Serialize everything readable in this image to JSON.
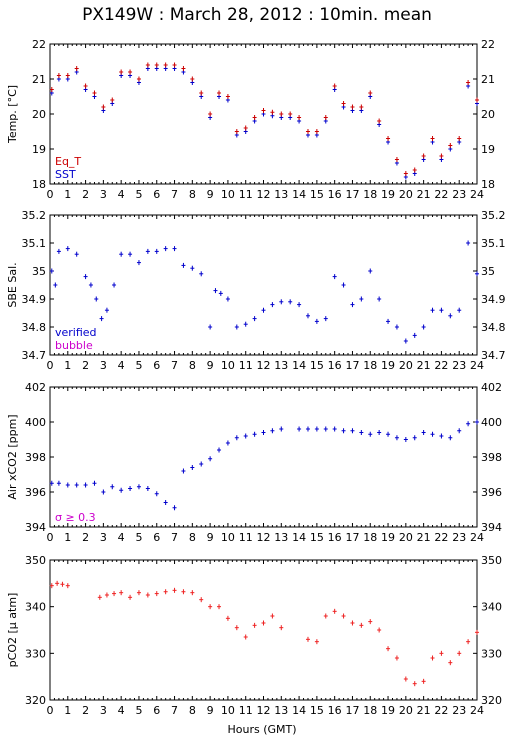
{
  "title": "PX149W : March 28, 2012 : 10min. mean",
  "xlabel": "Hours (GMT)",
  "chart_data": [
    {
      "type": "scatter",
      "ylabel": "Temp. [°C]",
      "ylim": [
        18,
        22
      ],
      "yticks": [
        18,
        19,
        20,
        21,
        22
      ],
      "xlim": [
        0,
        24
      ],
      "legend": [
        "Eq_T",
        "SST"
      ],
      "legend_colors": [
        "#cc0000",
        "#0000cc"
      ],
      "series": [
        {
          "name": "SST",
          "color": "#0000cc",
          "x": [
            0.1,
            0.5,
            1.0,
            1.5,
            2.0,
            2.5,
            3.0,
            3.5,
            4.0,
            4.5,
            5.0,
            5.5,
            6.0,
            6.5,
            7.0,
            7.5,
            8.0,
            8.5,
            9.0,
            9.5,
            10.0,
            10.5,
            11.0,
            11.5,
            12.0,
            12.5,
            13.0,
            13.5,
            14.0,
            14.5,
            15.0,
            15.5,
            16.0,
            16.5,
            17.0,
            17.5,
            18.0,
            18.5,
            19.0,
            19.5,
            20.0,
            20.5,
            21.0,
            21.5,
            22.0,
            22.5,
            23.0,
            23.5,
            24.0
          ],
          "y": [
            20.6,
            21.0,
            21.0,
            21.2,
            20.7,
            20.5,
            20.1,
            20.3,
            21.1,
            21.1,
            20.9,
            21.3,
            21.3,
            21.3,
            21.3,
            21.2,
            20.9,
            20.5,
            19.9,
            20.5,
            20.4,
            19.4,
            19.5,
            19.8,
            20.0,
            19.95,
            19.9,
            19.9,
            19.8,
            19.4,
            19.4,
            19.8,
            20.7,
            20.2,
            20.1,
            20.1,
            20.5,
            19.7,
            19.2,
            18.6,
            18.2,
            18.3,
            18.7,
            19.2,
            18.7,
            19.0,
            19.2,
            20.8,
            20.3
          ]
        },
        {
          "name": "Eq_T",
          "color": "#cc0000",
          "x": [
            0.1,
            0.5,
            1.0,
            1.5,
            2.0,
            2.5,
            3.0,
            3.5,
            4.0,
            4.5,
            5.0,
            5.5,
            6.0,
            6.5,
            7.0,
            7.5,
            8.0,
            8.5,
            9.0,
            9.5,
            10.0,
            10.5,
            11.0,
            11.5,
            12.0,
            12.5,
            13.0,
            13.5,
            14.0,
            14.5,
            15.0,
            15.5,
            16.0,
            16.5,
            17.0,
            17.5,
            18.0,
            18.5,
            19.0,
            19.5,
            20.0,
            20.5,
            21.0,
            21.5,
            22.0,
            22.5,
            23.0,
            23.5,
            24.0
          ],
          "y": [
            20.7,
            21.1,
            21.1,
            21.3,
            20.8,
            20.6,
            20.2,
            20.4,
            21.2,
            21.2,
            21.0,
            21.4,
            21.4,
            21.4,
            21.4,
            21.3,
            21.0,
            20.6,
            20.0,
            20.6,
            20.5,
            19.5,
            19.6,
            19.9,
            20.1,
            20.05,
            20.0,
            20.0,
            19.9,
            19.5,
            19.5,
            19.9,
            20.8,
            20.3,
            20.2,
            20.2,
            20.6,
            19.8,
            19.3,
            18.7,
            18.3,
            18.4,
            18.8,
            19.3,
            18.8,
            19.1,
            19.3,
            20.9,
            20.4
          ]
        }
      ]
    },
    {
      "type": "scatter",
      "ylabel": "SBE Sal.",
      "ylim": [
        34.7,
        35.2
      ],
      "yticks": [
        "34.7",
        "34.8",
        "34.9",
        "35",
        "35.1",
        "35.2"
      ],
      "yticks_num": [
        34.7,
        34.8,
        34.9,
        35.0,
        35.1,
        35.2
      ],
      "xlim": [
        0,
        24
      ],
      "legend": [
        "verified",
        "bubble"
      ],
      "legend_colors": [
        "#0000cc",
        "#cc00cc"
      ],
      "series": [
        {
          "name": "verified",
          "color": "#0000cc",
          "x": [
            0.1,
            0.3,
            0.5,
            1.0,
            1.5,
            2.0,
            2.3,
            2.6,
            2.9,
            3.2,
            3.6,
            4.0,
            4.5,
            5.0,
            5.5,
            6.0,
            6.5,
            7.0,
            7.5,
            8.0,
            8.5,
            9.0,
            9.3,
            9.6,
            10.0,
            10.5,
            11.0,
            11.5,
            12.0,
            12.5,
            13.0,
            13.5,
            14.0,
            14.5,
            15.0,
            15.5,
            16.0,
            16.5,
            17.0,
            17.5,
            18.0,
            18.5,
            19.0,
            19.5,
            20.0,
            20.5,
            21.0,
            21.5,
            22.0,
            22.5,
            23.0,
            23.5,
            24.0
          ],
          "y": [
            35.0,
            34.95,
            35.07,
            35.08,
            35.06,
            34.98,
            34.95,
            34.9,
            34.83,
            34.86,
            34.95,
            35.06,
            35.06,
            35.03,
            35.07,
            35.07,
            35.08,
            35.08,
            35.02,
            35.01,
            34.99,
            34.8,
            34.93,
            34.92,
            34.9,
            34.8,
            34.81,
            34.83,
            34.86,
            34.88,
            34.89,
            34.89,
            34.88,
            34.84,
            34.82,
            34.83,
            34.98,
            34.95,
            34.88,
            34.9,
            35.0,
            34.9,
            34.82,
            34.8,
            34.75,
            34.77,
            34.8,
            34.86,
            34.86,
            34.84,
            34.86,
            35.1,
            34.99
          ]
        }
      ]
    },
    {
      "type": "scatter",
      "ylabel": "Air xCO2 [ppm]",
      "ylim": [
        394,
        402
      ],
      "yticks": [
        394,
        396,
        398,
        400,
        402
      ],
      "xlim": [
        0,
        24
      ],
      "legend": [
        "σ ≥ 0.3"
      ],
      "legend_colors": [
        "#cc00cc"
      ],
      "series": [
        {
          "name": "xCO2",
          "color": "#0000cc",
          "x": [
            0.1,
            0.5,
            1.0,
            1.5,
            2.0,
            2.5,
            3.0,
            3.5,
            4.0,
            4.5,
            5.0,
            5.5,
            6.0,
            6.5,
            7.0,
            7.5,
            8.0,
            8.5,
            9.0,
            9.5,
            10.0,
            10.5,
            11.0,
            11.5,
            12.0,
            12.5,
            13.0,
            14.0,
            14.5,
            15.0,
            15.5,
            16.0,
            16.5,
            17.0,
            17.5,
            18.0,
            18.5,
            19.0,
            19.5,
            20.0,
            20.5,
            21.0,
            21.5,
            22.0,
            22.5,
            23.0,
            23.5,
            24.0
          ],
          "y": [
            396.5,
            396.5,
            396.4,
            396.4,
            396.4,
            396.5,
            396.0,
            396.3,
            396.1,
            396.2,
            396.3,
            396.2,
            395.9,
            395.4,
            395.1,
            397.2,
            397.4,
            397.6,
            397.9,
            398.4,
            398.8,
            399.1,
            399.2,
            399.3,
            399.4,
            399.5,
            399.6,
            399.6,
            399.6,
            399.6,
            399.6,
            399.6,
            399.5,
            399.5,
            399.4,
            399.3,
            399.4,
            399.3,
            399.1,
            399.0,
            399.1,
            399.4,
            399.3,
            399.2,
            399.1,
            399.5,
            399.9,
            400.0
          ]
        }
      ]
    },
    {
      "type": "scatter",
      "ylabel": "pCO2 [µ atm]",
      "ylim": [
        320,
        350
      ],
      "yticks": [
        320,
        330,
        340,
        350
      ],
      "xlim": [
        0,
        24
      ],
      "series": [
        {
          "name": "pCO2",
          "color": "#ee2222",
          "x": [
            0.1,
            0.4,
            0.7,
            1.0,
            2.8,
            3.2,
            3.6,
            4.0,
            4.5,
            5.0,
            5.5,
            6.0,
            6.5,
            7.0,
            7.5,
            8.0,
            8.5,
            9.0,
            9.5,
            10.0,
            10.5,
            11.0,
            11.5,
            12.0,
            12.5,
            13.0,
            14.5,
            15.0,
            15.5,
            16.0,
            16.5,
            17.0,
            17.5,
            18.0,
            18.5,
            19.0,
            19.5,
            20.0,
            20.5,
            21.0,
            21.5,
            22.0,
            22.5,
            23.0,
            23.5,
            24.0
          ],
          "y": [
            344.5,
            345.0,
            344.8,
            344.5,
            342.0,
            342.5,
            342.8,
            343.0,
            342.0,
            343.0,
            342.5,
            342.8,
            343.2,
            343.5,
            343.2,
            343.0,
            341.5,
            340.0,
            340.0,
            337.5,
            335.5,
            333.5,
            336.0,
            336.5,
            338.0,
            335.5,
            333.0,
            332.5,
            338.0,
            339.0,
            338.0,
            336.5,
            336.0,
            336.8,
            335.0,
            331.0,
            329.0,
            324.5,
            323.5,
            324.0,
            329.0,
            330.0,
            328.0,
            330.0,
            332.5,
            334.5
          ]
        }
      ]
    }
  ]
}
